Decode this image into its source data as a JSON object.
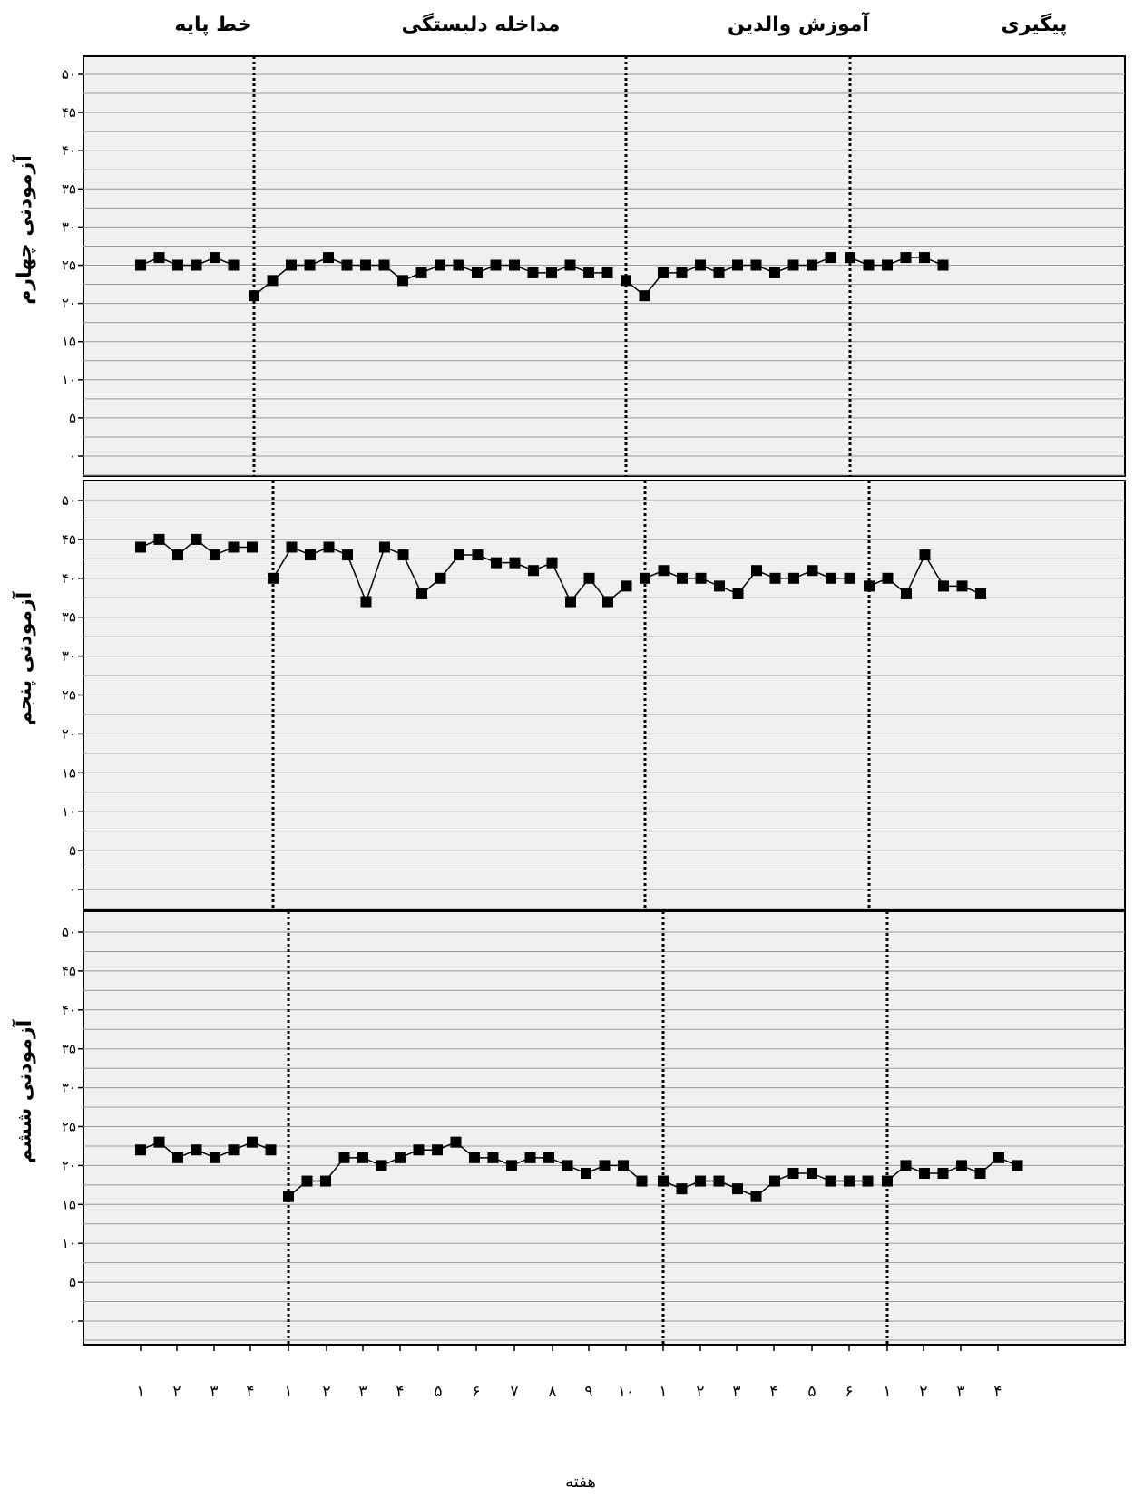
{
  "phase_titles": [
    "خط پایه",
    "مداخله دلبستگی",
    "آموزش والدین",
    "پیگیری"
  ],
  "x_axis_label": "هفته",
  "x_tick_labels": [
    "۱",
    "۲",
    "۳",
    "۴",
    "۱",
    "۲",
    "۳",
    "۴",
    "۵",
    "۶",
    "۷",
    "۸",
    "۹",
    "۱۰",
    "۱",
    "۲",
    "۳",
    "۴",
    "۵",
    "۶",
    "۱",
    "۲",
    "۳",
    "۴"
  ],
  "y_tick_labels": [
    "۰",
    "۵",
    "۱۰",
    "۱۵",
    "۲۰",
    "۲۵",
    "۳۰",
    "۳۵",
    "۴۰",
    "۴۵",
    "۵۰"
  ],
  "chart_data": [
    {
      "type": "line",
      "ylabel": "آزمودنی چهارم",
      "ylim": [
        0,
        50
      ],
      "grid": true,
      "phases": [
        {
          "name": "خط پایه",
          "values": [
            25,
            26,
            25,
            25,
            26,
            25
          ]
        },
        {
          "name": "مداخله دلبستگی",
          "values": [
            21,
            23,
            25,
            25,
            26,
            25,
            25,
            25,
            23,
            24,
            25,
            25,
            24,
            25,
            25,
            24,
            24,
            25,
            24,
            24
          ]
        },
        {
          "name": "آموزش والدین",
          "values": [
            23,
            21,
            24,
            24,
            25,
            24,
            25,
            25,
            24,
            25,
            25,
            26
          ]
        },
        {
          "name": "پیگیری",
          "values": [
            26,
            25,
            25,
            26,
            26,
            25
          ]
        }
      ]
    },
    {
      "type": "line",
      "ylabel": "آزمودنی پنجم",
      "ylim": [
        0,
        50
      ],
      "grid": true,
      "phases": [
        {
          "name": "خط پایه",
          "values": [
            44,
            45,
            43,
            45,
            43,
            44,
            44
          ]
        },
        {
          "name": "مداخله دلبستگی",
          "values": [
            40,
            44,
            43,
            44,
            43,
            37,
            44,
            43,
            38,
            40,
            43,
            43,
            42,
            42,
            41,
            42,
            37,
            40,
            37,
            39
          ]
        },
        {
          "name": "آموزش والدین",
          "values": [
            40,
            41,
            40,
            40,
            39,
            38,
            41,
            40,
            40,
            41,
            40,
            40
          ]
        },
        {
          "name": "پیگیری",
          "values": [
            39,
            40,
            38,
            43,
            39,
            39,
            38
          ]
        }
      ]
    },
    {
      "type": "line",
      "ylabel": "آزمودنی ششم",
      "ylim": [
        0,
        50
      ],
      "grid": true,
      "phases": [
        {
          "name": "خط پایه",
          "values": [
            22,
            23,
            21,
            22,
            21,
            22,
            23,
            22
          ]
        },
        {
          "name": "مداخله دلبستگی",
          "values": [
            16,
            18,
            18,
            21,
            21,
            20,
            21,
            22,
            22,
            23,
            21,
            21,
            20,
            21,
            21,
            20,
            19,
            20,
            20,
            18
          ]
        },
        {
          "name": "آموزش والدین",
          "values": [
            18,
            17,
            18,
            18,
            17,
            16,
            18,
            19,
            19,
            18,
            18,
            18
          ]
        },
        {
          "name": "پیگیری",
          "values": [
            18,
            20,
            19,
            19,
            20,
            19,
            21,
            20
          ]
        }
      ]
    }
  ]
}
